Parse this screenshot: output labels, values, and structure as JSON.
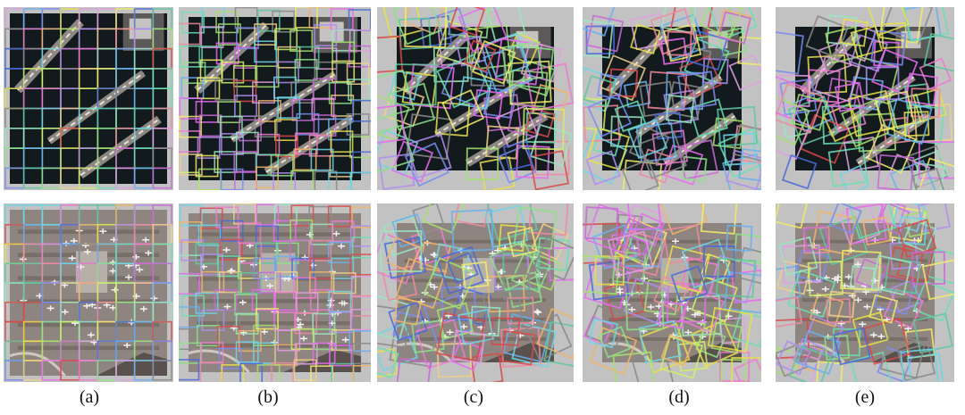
{
  "figure": {
    "captions": [
      "(a)",
      "(b)",
      "(c)",
      "(d)",
      "(e)"
    ]
  },
  "images": [
    {
      "kind": "harbor-aerial-photo",
      "row": "top"
    },
    {
      "kind": "airport-aerial-photo",
      "row": "bottom"
    }
  ],
  "palette": [
    "#8ee08a",
    "#e86cf0",
    "#6fd6e6",
    "#f2ec6a",
    "#b08ef0",
    "#f08aa0",
    "#6ab0f0",
    "#f0b46a",
    "#9ae6c0",
    "#d0f06a",
    "#c86ad6",
    "#6ae0b0",
    "#f0d08a",
    "#7a8cf0",
    "#e0a0e0",
    "#5fc8a0",
    "#f07ad0",
    "#a6e070",
    "#8a8a8a",
    "#4a6ad8",
    "#d84a4a",
    "#e8e04a"
  ],
  "colors": {
    "padding_gray": "#c2c2c2",
    "harbor_water": "#121a1e",
    "airport_ground": "#8f8580"
  }
}
